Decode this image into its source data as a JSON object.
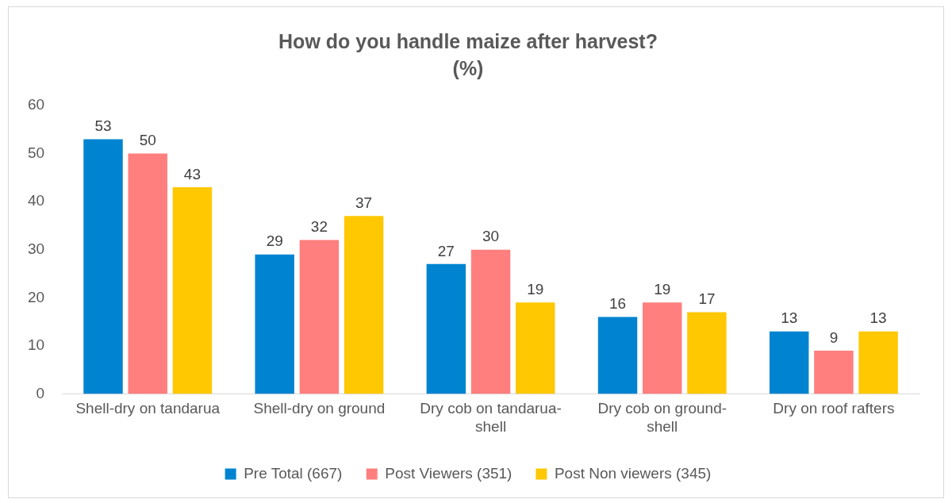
{
  "chart_data": {
    "type": "bar",
    "title": "How do you handle maize after harvest?",
    "subtitle": "(%)",
    "categories": [
      "Shell-dry on tandarua",
      "Shell-dry on ground",
      "Dry cob on tandarua-shell",
      "Dry cob on ground-shell",
      "Dry on roof rafters"
    ],
    "series": [
      {
        "name": "Pre Total (667)",
        "color": "#0084d1",
        "values": [
          53,
          29,
          27,
          16,
          13
        ]
      },
      {
        "name": "Post Viewers (351)",
        "color": "#ff7f7f",
        "values": [
          50,
          32,
          30,
          19,
          9
        ]
      },
      {
        "name": "Post Non viewers (345)",
        "color": "#ffc800",
        "values": [
          43,
          37,
          19,
          17,
          13
        ]
      }
    ],
    "ylim": [
      0,
      60
    ],
    "yticks": [
      0,
      10,
      20,
      30,
      40,
      50,
      60
    ],
    "grid": false,
    "legend": "bottom",
    "data_labels": true
  }
}
